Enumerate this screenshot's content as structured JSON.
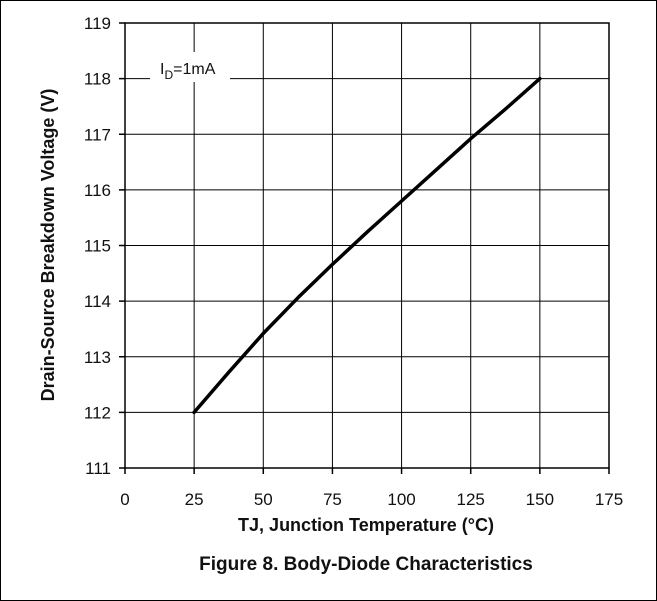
{
  "chart_data": {
    "type": "line",
    "xlabel_main": "TJ, Junction Temperature (",
    "xlabel_unit": "°C)",
    "ylabel": "Drain-Source Breakdown Voltage (V)",
    "caption": "Figure 8. Body-Diode Characteristics",
    "annotation": {
      "symbol": "I",
      "subscript": "D",
      "rest": "=1mA"
    },
    "xlim": [
      0,
      175
    ],
    "ylim": [
      111,
      119
    ],
    "x_ticks": [
      "0",
      "25",
      "50",
      "75",
      "100",
      "125",
      "150",
      "175"
    ],
    "y_ticks": [
      "111",
      "112",
      "113",
      "114",
      "115",
      "116",
      "117",
      "118",
      "119"
    ],
    "grid": true,
    "series": [
      {
        "x": [
          25,
          37.5,
          50,
          62.5,
          75,
          87.5,
          100,
          112.5,
          125,
          137.5,
          150
        ],
        "y": [
          112.0,
          112.72,
          113.42,
          114.06,
          114.66,
          115.24,
          115.8,
          116.36,
          116.92,
          117.45,
          118.0
        ]
      }
    ]
  }
}
